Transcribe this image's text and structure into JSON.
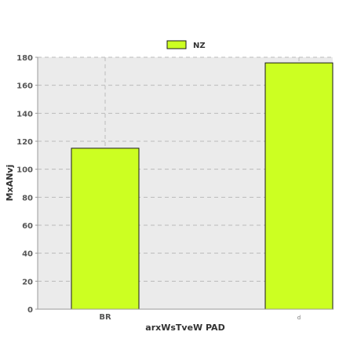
{
  "chart_data": {
    "type": "bar",
    "categories": [
      "BR",
      "d"
    ],
    "series": [
      {
        "name": "NZ",
        "values": [
          115,
          176
        ]
      }
    ],
    "xlabel": "arxWsTveW PAD",
    "ylabel": "MxANvj",
    "ylim": [
      0,
      180
    ],
    "yticks": [
      0,
      20,
      40,
      60,
      80,
      100,
      120,
      140,
      160,
      180
    ],
    "grid": true,
    "legend_position": "top-center",
    "colors": {
      "bar_fill": "#ccff22",
      "bar_stroke": "#1a1a1a",
      "plot_background": "#ebebeb",
      "grid": "#bbbbbb",
      "tick_text": "#555555",
      "label_text": "#333333"
    }
  }
}
